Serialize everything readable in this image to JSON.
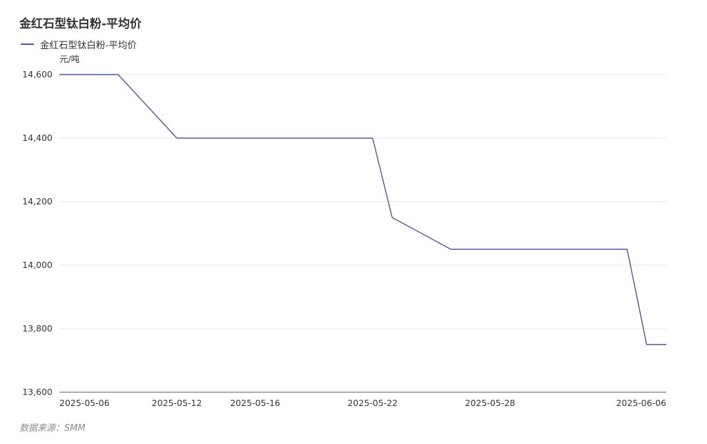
{
  "chart_data": {
    "type": "line",
    "title": "金红石型钛白粉-平均价",
    "ylabel": "元/吨",
    "xlabel": "",
    "source": "数据来源：SMM",
    "legend_position": "top-left",
    "grid": true,
    "colors": {
      "line": "#4a5796",
      "grid": "#e6e6e6",
      "axis": "#555555"
    },
    "ylim": [
      13600,
      14600
    ],
    "y_ticks": [
      13600,
      13800,
      14000,
      14200,
      14400,
      14600
    ],
    "y_tick_labels": [
      "13,600",
      "13,800",
      "14,000",
      "14,200",
      "14,400",
      "14,600"
    ],
    "x_tick_labels": [
      "2025-05-06",
      "2025-05-12",
      "2025-05-16",
      "2025-05-22",
      "2025-05-28",
      "2025-06-06"
    ],
    "x": [
      "2025-05-06",
      "2025-05-07",
      "2025-05-08",
      "2025-05-09",
      "2025-05-12",
      "2025-05-13",
      "2025-05-14",
      "2025-05-15",
      "2025-05-16",
      "2025-05-19",
      "2025-05-20",
      "2025-05-21",
      "2025-05-22",
      "2025-05-23",
      "2025-05-26",
      "2025-05-27",
      "2025-05-28",
      "2025-05-29",
      "2025-05-30",
      "2025-06-03",
      "2025-06-04",
      "2025-06-05",
      "2025-06-06"
    ],
    "series": [
      {
        "name": "金红石型钛白粉-平均价",
        "values": [
          14600,
          14600,
          14600,
          14600,
          14400,
          14400,
          14400,
          14400,
          14400,
          14400,
          14400,
          14400,
          14400,
          14150,
          14050,
          14050,
          14050,
          14050,
          14050,
          14050,
          14050,
          13750,
          13750
        ]
      }
    ]
  }
}
